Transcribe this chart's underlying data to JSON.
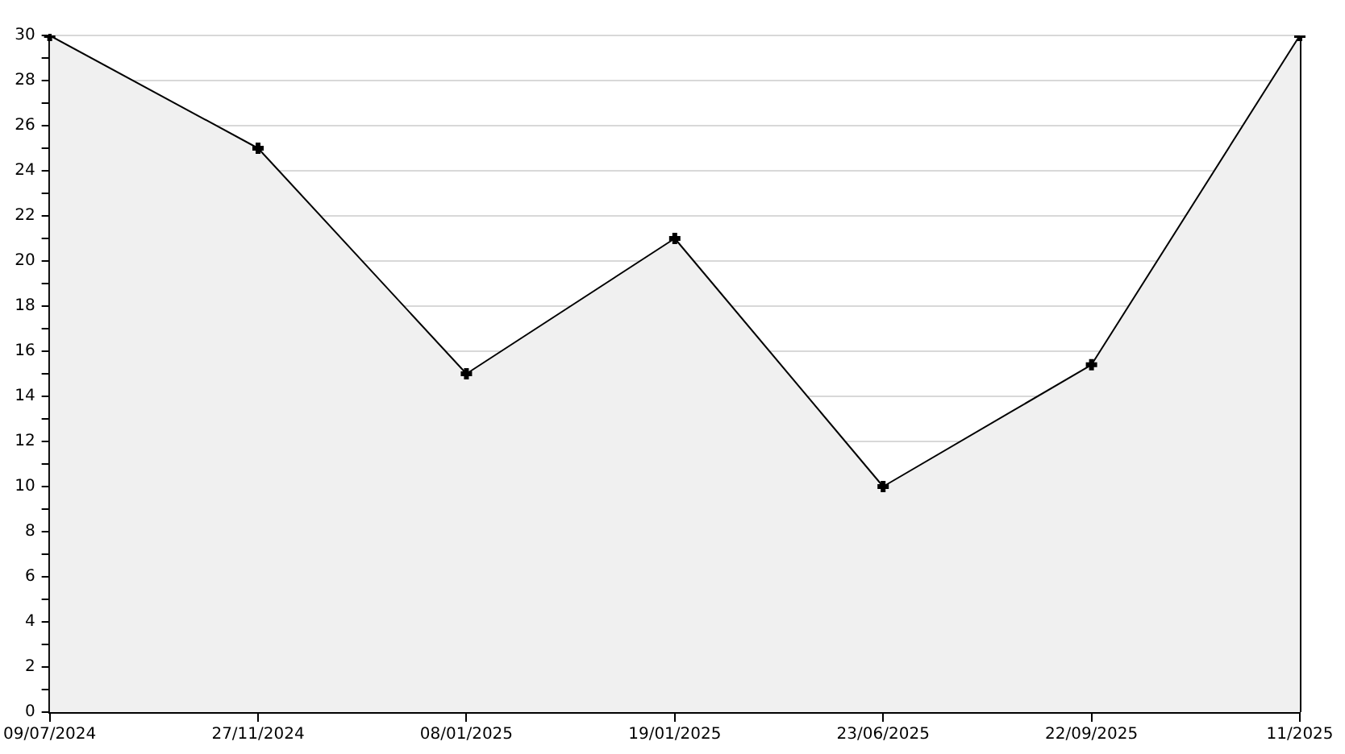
{
  "chart_data": {
    "type": "area",
    "categories": [
      "09/07/2024",
      "27/11/2024",
      "08/01/2025",
      "19/01/2025",
      "23/06/2025",
      "22/09/2025",
      "11/2025"
    ],
    "series": [
      {
        "color": "#000000",
        "values": [
          30,
          25,
          15,
          21,
          10,
          15.4,
          30
        ]
      }
    ],
    "ylim": [
      0,
      30
    ],
    "yticks": [
      0,
      {
        "value": 1,
        "label": null
      },
      2,
      {
        "value": 3,
        "label": null
      },
      4,
      {
        "value": 5,
        "label": null
      },
      6,
      {
        "value": 7,
        "label": null
      },
      8,
      {
        "value": 9,
        "label": null
      },
      10,
      {
        "value": 11,
        "label": null
      },
      12,
      {
        "value": 13,
        "label": null
      },
      14,
      {
        "value": 15,
        "label": null
      },
      16,
      {
        "value": 17,
        "label": null
      },
      18,
      {
        "value": 19,
        "label": null
      },
      20,
      {
        "value": 21,
        "label": null
      },
      22,
      {
        "value": 23,
        "label": null
      },
      24,
      {
        "value": 25,
        "label": null
      },
      26,
      {
        "value": 27,
        "label": null
      },
      28,
      {
        "value": 29,
        "label": null
      },
      30
    ],
    "grid": "y",
    "legend": false,
    "marker": "cross",
    "line_style": "solid"
  }
}
